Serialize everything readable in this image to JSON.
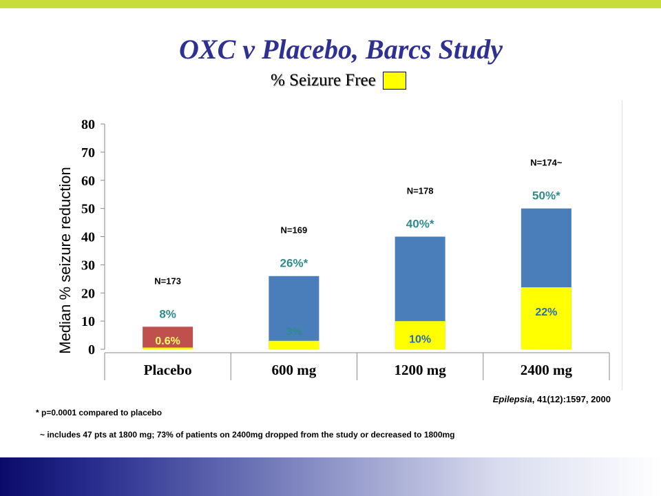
{
  "title": "OXC v Placebo, Barcs Study",
  "subtitle": "% Seizure Free",
  "ylabel": "Median % seizure reduction",
  "citation": {
    "journal": "Epilepsia",
    "rest": ", 41(12):1597, 2000"
  },
  "footnote1": "* p=0.0001 compared to placebo",
  "footnote2": "~ includes 47 pts at 1800 mg; 73% of patients on 2400mg dropped from the study or decreased to 1800mg",
  "colors": {
    "seizure_free": "#ffff00",
    "reduction": "#4a7ebb",
    "placebo": "#c0504d",
    "label_teal": "#2e8b8b",
    "title": "#2e3192"
  },
  "chart_data": {
    "type": "bar",
    "categories": [
      "Placebo",
      "600 mg",
      "1200 mg",
      "2400 mg"
    ],
    "series": [
      {
        "name": "% Seizure Free",
        "values": [
          0.6,
          3,
          10,
          22
        ]
      },
      {
        "values": [
          8,
          26,
          40,
          50
        ]
      }
    ],
    "reduction_labels": [
      "8%",
      "26%*",
      "40%*",
      "50%*"
    ],
    "seizure_free_labels": [
      "0.6%",
      "3%",
      "10%",
      "22%"
    ],
    "n_labels": [
      "N=173",
      "N=169",
      "N=178",
      "N=174~"
    ],
    "ylabel": "Median % seizure reduction",
    "ylim": [
      0,
      80
    ],
    "yticks": [
      0,
      10,
      20,
      30,
      40,
      50,
      60,
      70,
      80
    ],
    "legend": "top-center"
  }
}
